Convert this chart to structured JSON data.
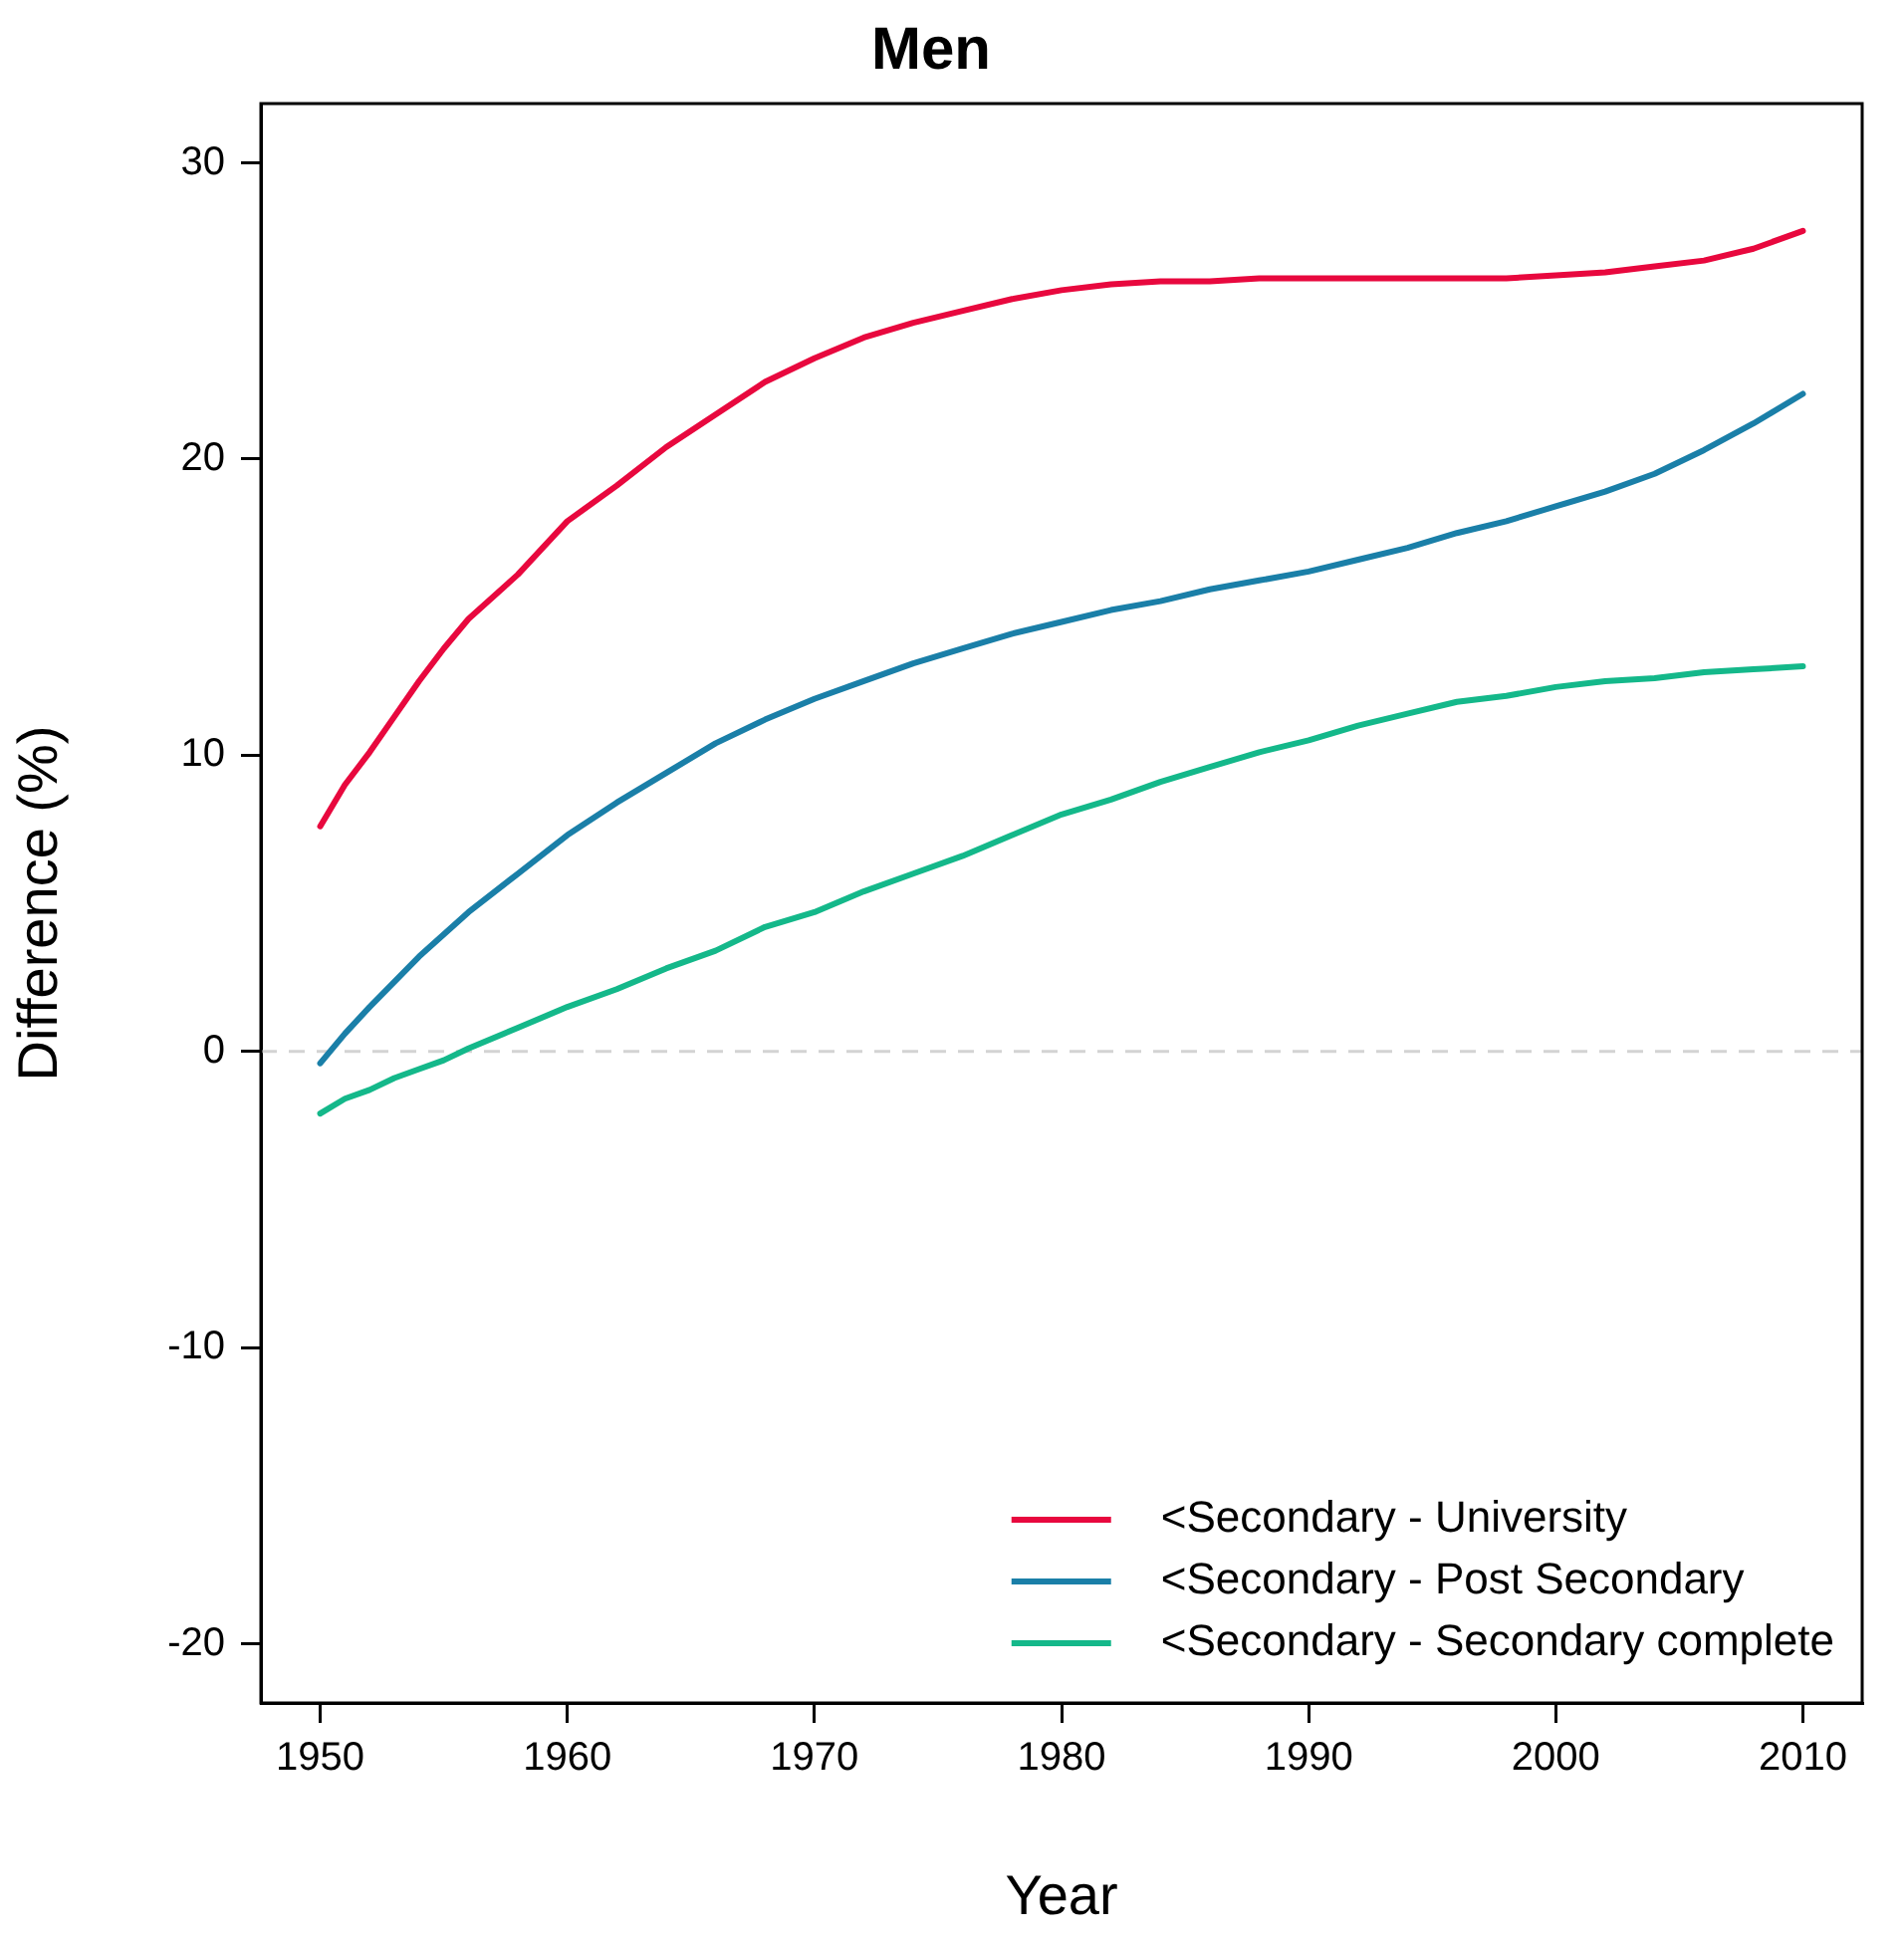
{
  "chart_data": {
    "type": "line",
    "title": "Men",
    "xlabel": "Year",
    "ylabel": "Difference (%)",
    "xlim": [
      1947.6,
      2012.4
    ],
    "xticks": [
      1950,
      1960,
      1970,
      1980,
      1990,
      2000,
      2010
    ],
    "ylim": [
      -22,
      32
    ],
    "yticks": [
      -20,
      -10,
      0,
      10,
      20,
      30
    ],
    "grid": false,
    "legend": "bottom right",
    "marker": "none",
    "line_style": "solid",
    "ref_lines": [
      {
        "axis": "y",
        "value": 0,
        "color": "#d3d3d3",
        "line_style": "dashed"
      }
    ],
    "series": [
      {
        "name": "<Secondary - University",
        "color": "#e8083e",
        "x": [
          1950,
          1951,
          1952,
          1953,
          1954,
          1955,
          1956,
          1958,
          1960,
          1962,
          1964,
          1966,
          1968,
          1970,
          1972,
          1974,
          1976,
          1978,
          1980,
          1982,
          1984,
          1986,
          1988,
          1990,
          1995,
          1998,
          2000,
          2002,
          2004,
          2006,
          2008,
          2010
        ],
        "values": [
          7.6,
          9.0,
          10.1,
          11.3,
          12.5,
          13.6,
          14.6,
          16.1,
          17.9,
          19.1,
          20.4,
          21.5,
          22.6,
          23.4,
          24.1,
          24.6,
          25.0,
          25.4,
          25.7,
          25.9,
          26.0,
          26.0,
          26.1,
          26.1,
          26.1,
          26.1,
          26.2,
          26.3,
          26.5,
          26.7,
          27.1,
          27.7
        ]
      },
      {
        "name": "<Secondary - Post Secondary",
        "color": "#1a7fa8",
        "x": [
          1950,
          1951,
          1952,
          1954,
          1956,
          1958,
          1960,
          1962,
          1964,
          1966,
          1968,
          1970,
          1972,
          1974,
          1976,
          1978,
          1980,
          1982,
          1984,
          1986,
          1988,
          1990,
          1992,
          1994,
          1996,
          1998,
          2000,
          2002,
          2004,
          2006,
          2008,
          2010
        ],
        "values": [
          -0.4,
          0.6,
          1.5,
          3.2,
          4.7,
          6.0,
          7.3,
          8.4,
          9.4,
          10.4,
          11.2,
          11.9,
          12.5,
          13.1,
          13.6,
          14.1,
          14.5,
          14.9,
          15.2,
          15.6,
          15.9,
          16.2,
          16.6,
          17.0,
          17.5,
          17.9,
          18.4,
          18.9,
          19.5,
          20.3,
          21.2,
          22.2
        ]
      },
      {
        "name": "<Secondary - Secondary complete",
        "color": "#14b88a",
        "x": [
          1950,
          1951,
          1952,
          1953,
          1954,
          1955,
          1956,
          1958,
          1960,
          1962,
          1964,
          1966,
          1968,
          1970,
          1972,
          1974,
          1976,
          1978,
          1980,
          1982,
          1984,
          1986,
          1988,
          1990,
          1992,
          1994,
          1996,
          1998,
          2000,
          2002,
          2004,
          2006,
          2008,
          2010
        ],
        "values": [
          -2.1,
          -1.6,
          -1.3,
          -0.9,
          -0.6,
          -0.3,
          0.1,
          0.8,
          1.5,
          2.1,
          2.8,
          3.4,
          4.2,
          4.7,
          5.4,
          6.0,
          6.6,
          7.3,
          8.0,
          8.5,
          9.1,
          9.6,
          10.1,
          10.5,
          11.0,
          11.4,
          11.8,
          12.0,
          12.3,
          12.5,
          12.6,
          12.8,
          12.9,
          13.0
        ]
      }
    ]
  }
}
